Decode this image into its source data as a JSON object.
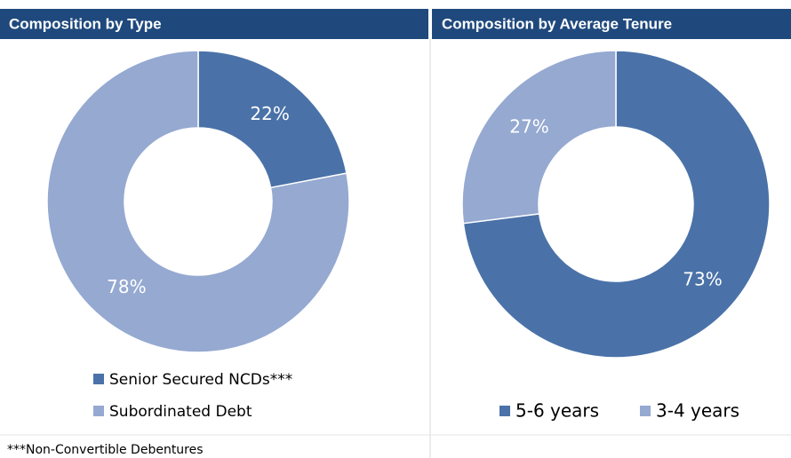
{
  "chart_data": [
    {
      "type": "pie",
      "title": "Composition by Type",
      "categories": [
        "Senior Secured NCDs***",
        "Subordinated Debt"
      ],
      "values": [
        22,
        78
      ],
      "value_labels": [
        "22%",
        "78%"
      ],
      "colors": [
        "#4a72a8",
        "#95a9d1"
      ]
    },
    {
      "type": "pie",
      "title": "Composition by Average Tenure",
      "categories": [
        "5-6 years",
        "3-4 years"
      ],
      "values": [
        73,
        27
      ],
      "value_labels": [
        "73%",
        "27%"
      ],
      "colors": [
        "#4a72a8",
        "#95a9d1"
      ]
    }
  ],
  "footnote": "***Non-Convertible Debentures"
}
